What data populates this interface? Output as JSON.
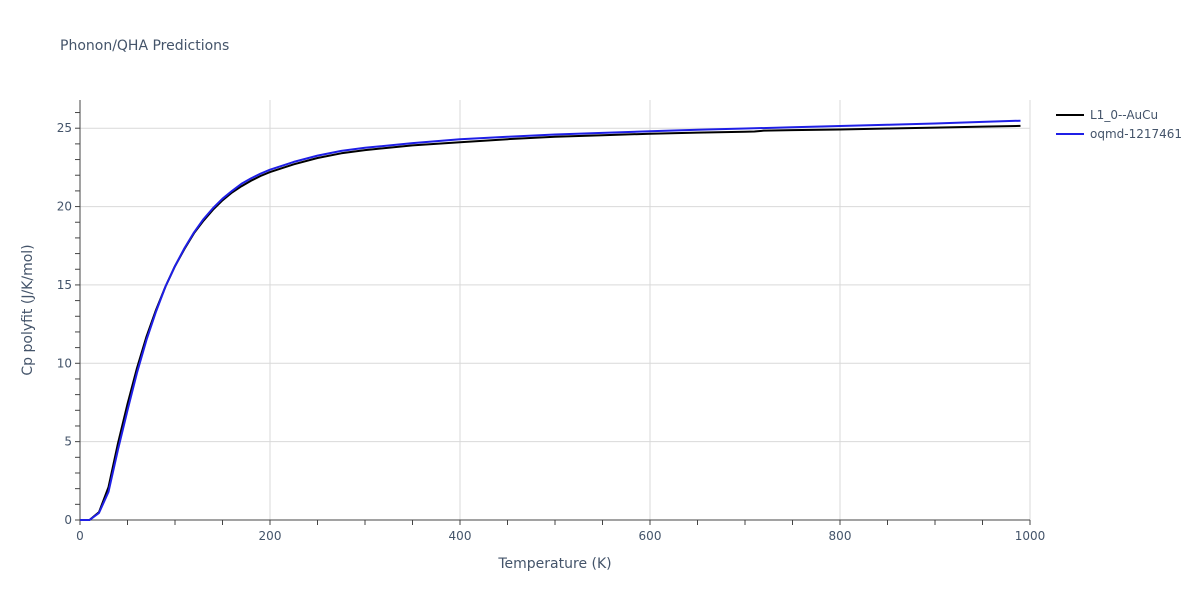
{
  "chart_data": {
    "type": "line",
    "title": "Phonon/QHA Predictions",
    "xlabel": "Temperature (K)",
    "ylabel": "Cp polyfit (J/K/mol)",
    "xlim": [
      0,
      1000
    ],
    "ylim": [
      0,
      26.8
    ],
    "x_ticks": [
      0,
      200,
      400,
      600,
      800,
      1000
    ],
    "y_ticks": [
      0,
      5,
      10,
      15,
      20,
      25
    ],
    "grid": true,
    "legend_position": "top-right",
    "series": [
      {
        "name": "L1_0--AuCu",
        "color": "#000000",
        "x": [
          0,
          10,
          20,
          30,
          40,
          50,
          60,
          70,
          80,
          90,
          100,
          110,
          120,
          130,
          140,
          150,
          160,
          170,
          180,
          190,
          200,
          225,
          250,
          275,
          300,
          350,
          400,
          450,
          500,
          550,
          600,
          650,
          700,
          710,
          720,
          750,
          800,
          850,
          900,
          950,
          990
        ],
        "y": [
          0,
          0.0,
          0.5,
          2.1,
          4.9,
          7.4,
          9.7,
          11.7,
          13.4,
          14.9,
          16.2,
          17.3,
          18.3,
          19.1,
          19.8,
          20.4,
          20.9,
          21.3,
          21.65,
          21.95,
          22.2,
          22.7,
          23.1,
          23.4,
          23.6,
          23.9,
          24.1,
          24.3,
          24.45,
          24.55,
          24.65,
          24.72,
          24.78,
          24.79,
          24.85,
          24.88,
          24.92,
          24.98,
          25.04,
          25.1,
          25.15
        ]
      },
      {
        "name": "oqmd-1217461",
        "color": "#1f1fe6",
        "x": [
          0,
          10,
          20,
          30,
          40,
          50,
          60,
          70,
          80,
          90,
          100,
          110,
          120,
          130,
          140,
          150,
          160,
          170,
          180,
          190,
          200,
          225,
          250,
          275,
          300,
          350,
          400,
          450,
          500,
          550,
          600,
          650,
          700,
          750,
          800,
          850,
          900,
          950,
          990
        ],
        "y": [
          0,
          0.0,
          0.45,
          1.8,
          4.5,
          7.0,
          9.4,
          11.5,
          13.3,
          14.9,
          16.2,
          17.35,
          18.35,
          19.2,
          19.9,
          20.5,
          21.0,
          21.45,
          21.8,
          22.1,
          22.35,
          22.85,
          23.25,
          23.55,
          23.75,
          24.05,
          24.3,
          24.45,
          24.6,
          24.7,
          24.8,
          24.9,
          24.98,
          25.06,
          25.14,
          25.22,
          25.3,
          25.4,
          25.48
        ]
      }
    ]
  }
}
